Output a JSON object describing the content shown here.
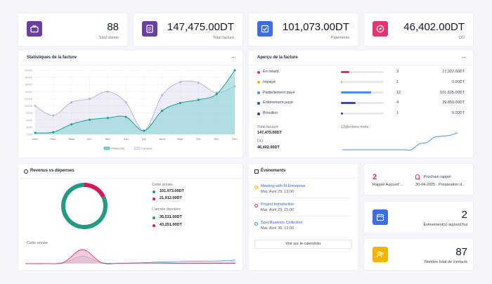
{
  "kpis": [
    {
      "value": "88",
      "label": "Total clients",
      "color": "#6b3fa0",
      "icon": "briefcase-icon"
    },
    {
      "value": "147,475.00DT",
      "label": "Total facturé",
      "color": "#6b3fa0",
      "icon": "document-icon"
    },
    {
      "value": "101,073.00DT",
      "label": "Paiements",
      "color": "#3b6ee8",
      "icon": "checkbox-icon"
    },
    {
      "value": "46,402.00DT",
      "label": "DÛ",
      "color": "#e8336f",
      "icon": "compass-icon"
    }
  ],
  "invoice_stats": {
    "title": "Statistiques de la facture",
    "more": "···",
    "legend": [
      "Paiements",
      "Factures"
    ]
  },
  "chart_data": [
    {
      "type": "line",
      "title": "Statistiques de la facture",
      "categories": [
        "Janv.",
        "Févr.",
        "Mars",
        "Avr.",
        "Mai",
        "Juin",
        "Juil.",
        "Août",
        "Sept.",
        "Oct.",
        "Nov.",
        "Déc."
      ],
      "y_ticks": [
        "20000",
        "18000",
        "16000",
        "14000",
        "12000",
        "10000",
        "8000",
        "6000",
        "4000",
        "2000"
      ],
      "ylim": [
        2000,
        20000
      ],
      "grid": true,
      "legend_position": "bottom",
      "series": [
        {
          "name": "Paiements",
          "color": "#1fa39a",
          "values": [
            2400,
            2600,
            4800,
            6100,
            6600,
            6900,
            3000,
            8600,
            10800,
            11700,
            13300,
            20000
          ]
        },
        {
          "name": "Factures",
          "color": "#b9b8dd",
          "values": [
            10000,
            7300,
            11000,
            12000,
            14000,
            11000,
            3000,
            13000,
            16700,
            16500,
            13700,
            15500
          ]
        }
      ]
    },
    {
      "type": "area",
      "title": "Revenus vs dépenses",
      "legend_position": "none",
      "series": [
        {
          "name": "Cette année",
          "color": "#4ab2c4",
          "values": [
            0,
            0,
            2,
            35,
            4,
            2,
            4,
            8,
            10,
            12,
            13,
            17
          ]
        },
        {
          "name": "L'année dernière",
          "color": "#d6336c",
          "values": [
            0,
            0,
            6,
            66,
            4,
            2,
            3,
            3,
            2,
            2,
            2,
            2
          ]
        }
      ]
    },
    {
      "type": "pie",
      "title": "Revenus vs dépenses",
      "series": [
        {
          "name": "Revenus",
          "color": "#249a85",
          "values": [
            101073
          ]
        },
        {
          "name": "Dépenses",
          "color": "#d91656",
          "values": [
            21912
          ]
        }
      ]
    },
    {
      "type": "line",
      "title": "12derniers mois",
      "series": [
        {
          "name": "",
          "color": "#4a8ee3",
          "values": [
            0,
            0,
            0,
            0,
            0,
            0,
            0,
            0,
            0,
            0,
            12,
            15,
            26,
            28,
            30,
            35
          ]
        }
      ]
    }
  ],
  "overview": {
    "title": "Aperçu de la facture",
    "more": "···",
    "rows": [
      {
        "label": "En retard",
        "count": "3",
        "amount": "17,322.00DT",
        "color": "#d6336c",
        "fill": 0.2
      },
      {
        "label": "Impayé",
        "count": "1",
        "amount": "0.00DT",
        "color": "#f5b400",
        "fill": 0.03
      },
      {
        "label": "Partiellement payé",
        "count": "12",
        "amount": "101,625.00DT",
        "color": "#4a8ee3",
        "fill": 0.7
      },
      {
        "label": "Entièrement payé",
        "count": "4",
        "amount": "39,850.00DT",
        "color": "#2c4fb0",
        "fill": 0.35
      },
      {
        "label": "Brouillon",
        "count": "1",
        "amount": "0.00DT",
        "color": "#3b3f6b",
        "fill": 0.05
      }
    ],
    "total_label": "Total facturé",
    "total_value": "147,475.00DT",
    "due_label": "DÛ",
    "due_value": "46,402.00DT",
    "period": "12derniers mois"
  },
  "revenue": {
    "title": "Revenus vs dépenses",
    "this_year": "Cette année",
    "this_year_income": "101,073.00DT",
    "this_year_expense": "21,912.00DT",
    "last_year": "L'année dernière",
    "last_year_income": "35,531.00DT",
    "last_year_expense": "43,251.00DT",
    "chart_label": "Cette année",
    "income_color": "#249a85",
    "expense_color": "#d91656"
  },
  "events": {
    "title": "Événements",
    "items": [
      {
        "title": "Meeting with M.Entreprise",
        "date": "Mar, Avril 29, 13:00",
        "icon": "sun-icon",
        "color": "#f5b400"
      },
      {
        "title": "Project Introduction",
        "date": "Mar, Avril 29, 15:00",
        "icon": "globe-icon",
        "color": "#d6336c"
      },
      {
        "title": "Specifications Collection",
        "date": "Mar, Avril 30, 12:00",
        "icon": "gear-icon",
        "color": "#4a8ee3"
      }
    ],
    "button": "Voir sur le calendrier"
  },
  "reminder": {
    "count": "2",
    "count_label": "Rappel Aujourd'...",
    "next_label": "Prochain rappel",
    "next_value": "30-04-2025 - Preparation d...",
    "color": "#d6336c"
  },
  "today_events": {
    "count": "2",
    "label": "Événement(s) aujourd'hui",
    "color": "#3b6ee8"
  },
  "contacts": {
    "count": "87",
    "label": "Nombre total de contacts",
    "color": "#f5b400"
  }
}
